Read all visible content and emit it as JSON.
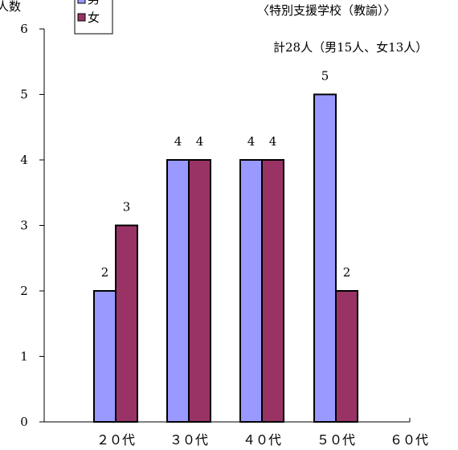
{
  "chart_data": {
    "type": "bar",
    "title": "〈特別支援学校（教諭）〉",
    "subtitle": "計28人（男15人、女13人）",
    "ylabel": "人数",
    "ylim": [
      0,
      6
    ],
    "yticks": [
      0,
      1,
      2,
      3,
      4,
      5,
      6
    ],
    "categories": [
      "２０代",
      "３０代",
      "４０代",
      "５０代",
      "６０代"
    ],
    "series": [
      {
        "name": "男",
        "color": "#9999ff",
        "values": [
          2,
          4,
          4,
          5,
          0
        ]
      },
      {
        "name": "女",
        "color": "#993366",
        "values": [
          3,
          4,
          4,
          2,
          0
        ]
      }
    ],
    "grid": false,
    "legend_position": "top-left"
  }
}
